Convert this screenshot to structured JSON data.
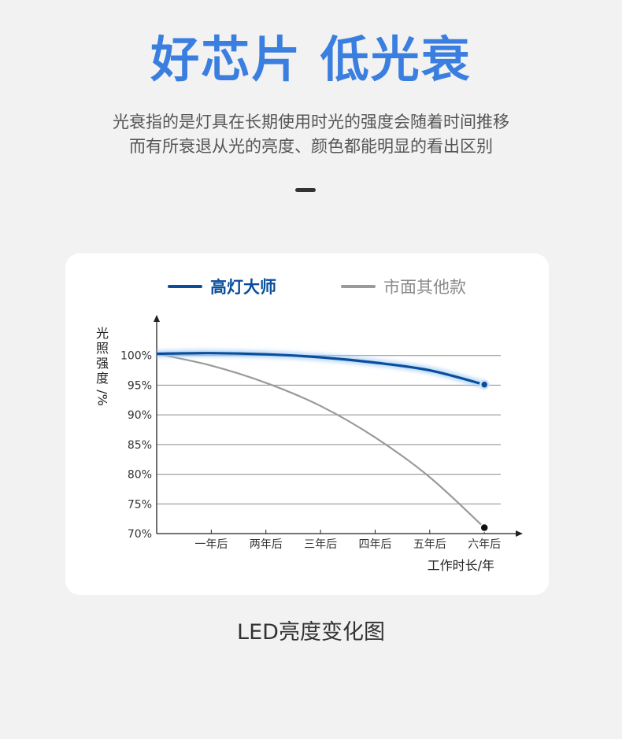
{
  "header": {
    "title": "好芯片 低光衰",
    "description_line1": "光衰指的是灯具在长期使用时光的强度会随着时间推移",
    "description_line2": "而有所衰退从光的亮度、颜色都能明显的看出区别"
  },
  "footer": {
    "caption": "LED亮度变化图"
  },
  "colors": {
    "headline": "#3a7ee0",
    "series_primary": "#0a4e9b",
    "series_secondary": "#9a9a9a",
    "background": "#f2f2f2",
    "card": "#ffffff"
  },
  "chart_data": {
    "type": "line",
    "title": "",
    "xlabel": "工作时长/年",
    "ylabel_main": "光照强度",
    "ylabel_unit": "/%",
    "categories": [
      "",
      "一年后",
      "两年后",
      "三年后",
      "四年后",
      "五年后",
      "六年后"
    ],
    "x": [
      0,
      1,
      2,
      3,
      4,
      5,
      6
    ],
    "y_ticks": [
      "70%",
      "75%",
      "80%",
      "85%",
      "90%",
      "95%",
      "100%"
    ],
    "y_tick_values": [
      70,
      75,
      80,
      85,
      90,
      95,
      100
    ],
    "ylim": [
      70,
      105
    ],
    "xlim": [
      0,
      6.3
    ],
    "grid": true,
    "legend_position": "top",
    "series": [
      {
        "name": "高灯大师",
        "color": "#0a4e9b",
        "values": [
          100.3,
          100.4,
          100.2,
          99.7,
          98.8,
          97.5,
          95.1
        ]
      },
      {
        "name": "市面其他款",
        "color": "#9a9a9a",
        "values": [
          100.3,
          98.3,
          95.4,
          91.5,
          86.2,
          79.5,
          71.0
        ]
      }
    ]
  }
}
